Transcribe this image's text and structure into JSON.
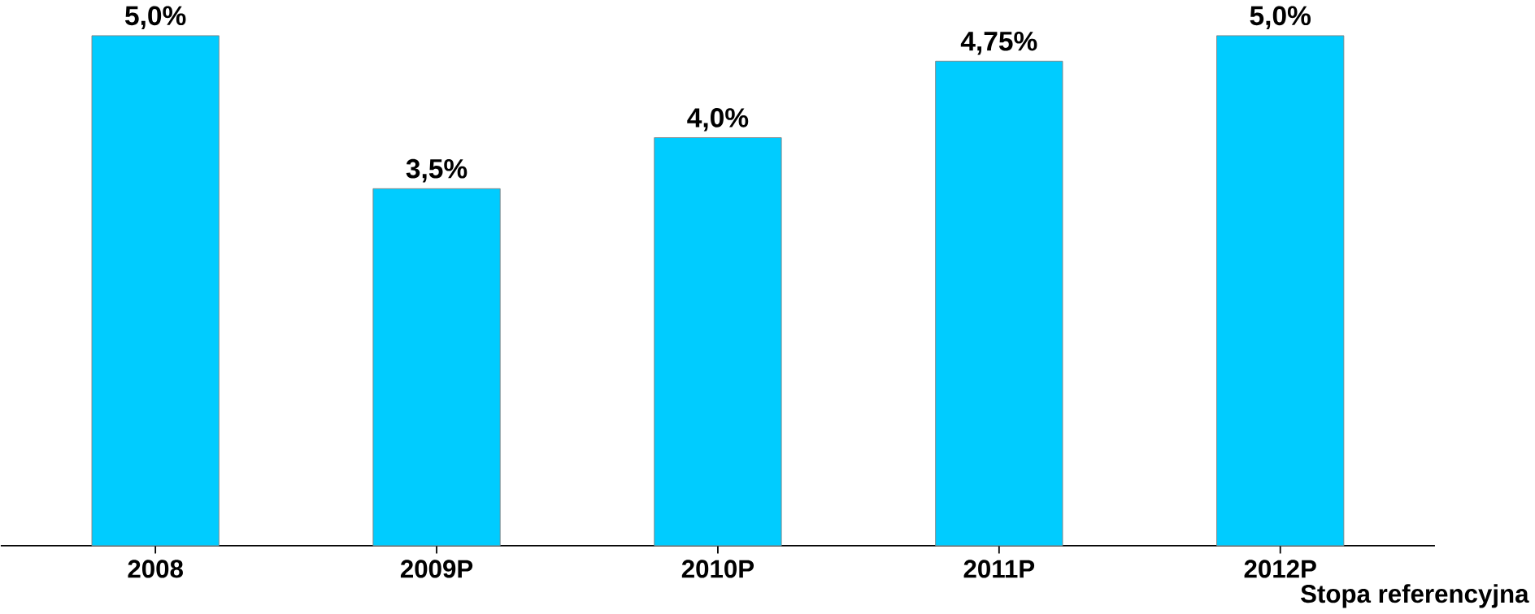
{
  "chart_data": {
    "type": "bar",
    "categories": [
      "2008",
      "2009P",
      "2010P",
      "2011P",
      "2012P"
    ],
    "series": [
      {
        "name": "Stopa referencyjna",
        "color": "#00ccff",
        "values": [
          5.0,
          3.5,
          4.0,
          4.75,
          5.0
        ],
        "value_labels": [
          "5,0%",
          "3,5%",
          "4,0%",
          "4,75%",
          "5,0%"
        ]
      }
    ]
  }
}
